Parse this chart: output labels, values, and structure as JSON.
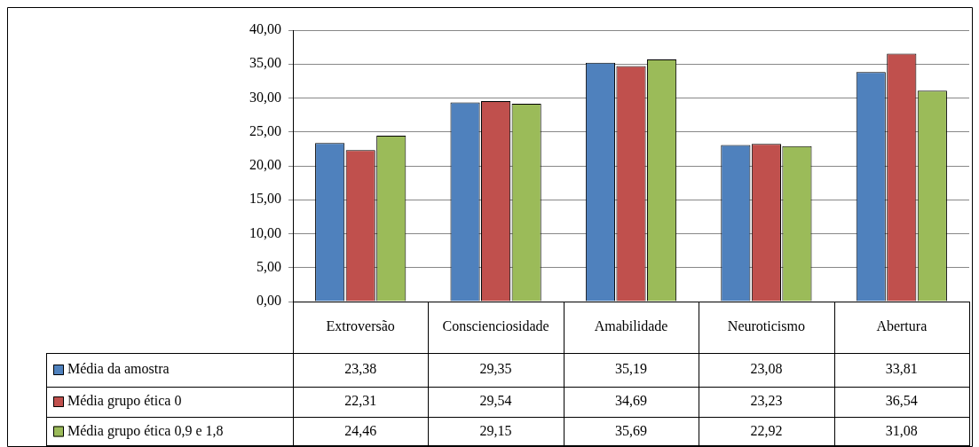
{
  "chart_data": {
    "type": "bar",
    "categories": [
      "Extroversão",
      "Conscienciosidade",
      "Amabilidade",
      "Neuroticismo",
      "Abertura"
    ],
    "series": [
      {
        "name": "Média da amostra",
        "color": "#4f81bd",
        "values": [
          23.38,
          29.35,
          35.19,
          23.08,
          33.81
        ],
        "value_labels": [
          "23,38",
          "29,35",
          "35,19",
          "23,08",
          "33,81"
        ]
      },
      {
        "name": "Média grupo ética 0",
        "color": "#c0504d",
        "values": [
          22.31,
          29.54,
          34.69,
          23.23,
          36.54
        ],
        "value_labels": [
          "22,31",
          "29,54",
          "34,69",
          "23,23",
          "36,54"
        ]
      },
      {
        "name": "Média grupo ética 0,9 e 1,8",
        "color": "#9bbb59",
        "values": [
          24.46,
          29.15,
          35.69,
          22.92,
          31.08
        ],
        "value_labels": [
          "24,46",
          "29,15",
          "35,69",
          "22,92",
          "31,08"
        ]
      }
    ],
    "ylim": [
      0,
      40
    ],
    "yticks": [
      {
        "value": 0,
        "label": "0,00"
      },
      {
        "value": 5,
        "label": "5,00"
      },
      {
        "value": 10,
        "label": "10,00"
      },
      {
        "value": 15,
        "label": "15,00"
      },
      {
        "value": 20,
        "label": "20,00"
      },
      {
        "value": 25,
        "label": "25,00"
      },
      {
        "value": 30,
        "label": "30,00"
      },
      {
        "value": 35,
        "label": "35,00"
      },
      {
        "value": 40,
        "label": "40,00"
      }
    ],
    "grid": "y",
    "legend": "bottom left"
  }
}
